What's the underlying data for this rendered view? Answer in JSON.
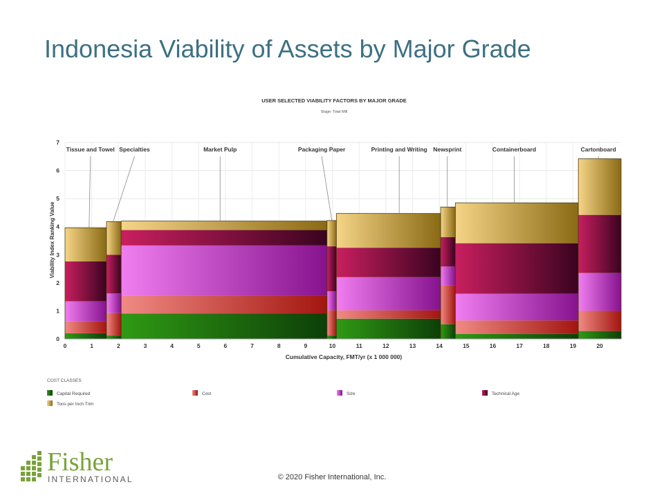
{
  "slide": {
    "title": "Indonesia Viability of Assets by Major Grade",
    "copyright": "© 2020 Fisher International,  Inc."
  },
  "logo": {
    "word": "Fisher",
    "sub": "INTERNATIONAL"
  },
  "chart_data": {
    "type": "bar",
    "title": "USER SELECTED VIABILITY FACTORS BY MAJOR GRADE",
    "subtitle": "Stage: Total Mill",
    "xlabel": "Cumulative Capacity, FMT/yr (x 1 000 000)",
    "ylabel": "Viability Index Ranking Value",
    "xlim": [
      0,
      20.8
    ],
    "ylim": [
      0,
      7
    ],
    "xticks": [
      0,
      1,
      2,
      3,
      4,
      5,
      6,
      7,
      8,
      9,
      10,
      11,
      12,
      13,
      14,
      15,
      16,
      17,
      18,
      19,
      20
    ],
    "yticks": [
      0,
      1,
      2,
      3,
      4,
      5,
      6,
      7
    ],
    "legend_title": "COST CLASSES",
    "legend_position": "bottom",
    "series": [
      {
        "name": "Capital Required",
        "color_light": "#2f9a14",
        "color_dark": "#0d3f08"
      },
      {
        "name": "Cost",
        "color_light": "#f08a84",
        "color_dark": "#a3150f"
      },
      {
        "name": "Size",
        "color_light": "#f07ef0",
        "color_dark": "#86128e"
      },
      {
        "name": "Technical Age",
        "color_light": "#c91f5f",
        "color_dark": "#3a0320"
      },
      {
        "name": "Tons per Inch Trim",
        "color_light": "#f5d487",
        "color_dark": "#8a6a14"
      }
    ],
    "bars": [
      {
        "grade": "Tissue and Towel",
        "x0": 0,
        "x1": 1.55,
        "values": [
          0.2,
          0.42,
          0.72,
          1.42,
          1.2
        ]
      },
      {
        "grade": "Specialties",
        "x0": 1.55,
        "x1": 2.1,
        "values": [
          0.12,
          0.8,
          0.7,
          1.38,
          1.18
        ]
      },
      {
        "grade": "Market Pulp",
        "x0": 2.1,
        "x1": 9.8,
        "values": [
          0.9,
          0.63,
          1.8,
          0.55,
          0.32
        ]
      },
      {
        "grade": "Packaging Paper",
        "x0": 9.8,
        "x1": 10.15,
        "values": [
          0.12,
          0.9,
          0.68,
          1.6,
          0.92
        ]
      },
      {
        "grade": "Printing and Writing",
        "x0": 10.15,
        "x1": 14.05,
        "values": [
          0.72,
          0.3,
          1.18,
          1.05,
          1.22
        ]
      },
      {
        "grade": "Newsprint",
        "x0": 14.05,
        "x1": 14.6,
        "values": [
          0.52,
          1.38,
          0.68,
          1.05,
          1.07
        ]
      },
      {
        "grade": "Containerboard",
        "x0": 14.6,
        "x1": 19.2,
        "values": [
          0.18,
          0.48,
          0.95,
          1.8,
          1.44
        ]
      },
      {
        "grade": "Cartonboard",
        "x0": 19.2,
        "x1": 20.8,
        "values": [
          0.28,
          0.72,
          1.35,
          2.07,
          2.0
        ]
      }
    ],
    "grade_labels": [
      {
        "text": "Tissue and Towel",
        "label_x": 0.95,
        "point_x": 0.9
      },
      {
        "text": "Specialties",
        "label_x": 2.6,
        "point_x": 1.8
      },
      {
        "text": "Market Pulp",
        "label_x": 5.8,
        "point_x": 5.8
      },
      {
        "text": "Packaging Paper",
        "label_x": 9.6,
        "point_x": 9.98
      },
      {
        "text": "Printing and Writing",
        "label_x": 12.5,
        "point_x": 12.5
      },
      {
        "text": "Newsprint",
        "label_x": 14.3,
        "point_x": 14.3
      },
      {
        "text": "Containerboard",
        "label_x": 16.8,
        "point_x": 16.8
      },
      {
        "text": "Cartonboard",
        "label_x": 19.95,
        "point_x": 19.95
      }
    ]
  }
}
